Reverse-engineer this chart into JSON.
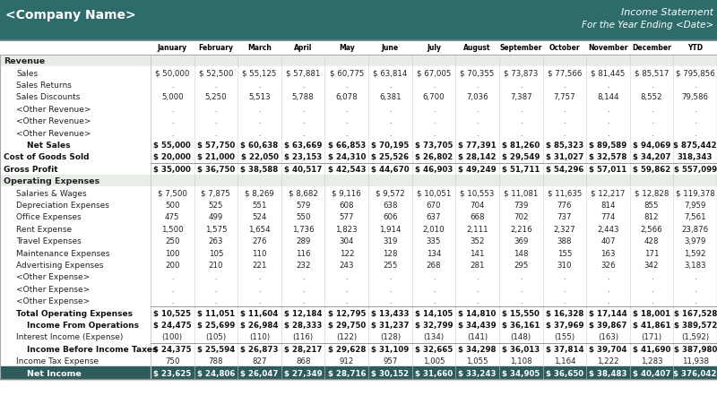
{
  "company_name": "<Company Name>",
  "report_title": "Income Statement",
  "report_subtitle": "For the Year Ending <Date>",
  "header_bg": "#2e6b6b",
  "header_text_color": "#ffffff",
  "section_bg": "#e8ede8",
  "net_income_bg": "#2e5c5c",
  "net_income_text": "#ffffff",
  "border_color": "#aaaaaa",
  "columns": [
    "January",
    "February",
    "March",
    "April",
    "May",
    "June",
    "July",
    "August",
    "September",
    "October",
    "November",
    "December",
    "YTD"
  ],
  "rows": [
    {
      "label": "Revenue",
      "type": "section",
      "indent": 0,
      "values": []
    },
    {
      "label": "Sales",
      "type": "data_dollar",
      "indent": 1,
      "values": [
        "$ 50,000",
        "$ 52,500",
        "$ 55,125",
        "$ 57,881",
        "$ 60,775",
        "$ 63,814",
        "$ 67,005",
        "$ 70,355",
        "$ 73,873",
        "$ 77,566",
        "$ 81,445",
        "$ 85,517",
        "$ 795,856"
      ]
    },
    {
      "label": "Sales Returns",
      "type": "data_dot",
      "indent": 1,
      "values": [
        ".",
        ".",
        ".",
        ".",
        ".",
        ".",
        ".",
        ".",
        ".",
        ".",
        ".",
        ".",
        "."
      ]
    },
    {
      "label": "Sales Discounts",
      "type": "data_nodollar",
      "indent": 1,
      "values": [
        "5,000",
        "5,250",
        "5,513",
        "5,788",
        "6,078",
        "6,381",
        "6,700",
        "7,036",
        "7,387",
        "7,757",
        "8,144",
        "8,552",
        "79,586"
      ]
    },
    {
      "label": "<Other Revenue>",
      "type": "data_dot",
      "indent": 1,
      "values": [
        ".",
        ".",
        ".",
        ".",
        ".",
        ".",
        ".",
        ".",
        ".",
        ".",
        ".",
        ".",
        "."
      ]
    },
    {
      "label": "<Other Revenue>",
      "type": "data_dot",
      "indent": 1,
      "values": [
        ".",
        ".",
        ".",
        ".",
        ".",
        ".",
        ".",
        ".",
        ".",
        ".",
        ".",
        ".",
        "."
      ]
    },
    {
      "label": "<Other Revenue>",
      "type": "data_dot",
      "indent": 1,
      "values": [
        ".",
        ".",
        ".",
        ".",
        ".",
        ".",
        ".",
        ".",
        ".",
        ".",
        ".",
        ".",
        "."
      ]
    },
    {
      "label": "Net Sales",
      "type": "bold_dollar",
      "indent": 2,
      "values": [
        "$ 55,000",
        "$ 57,750",
        "$ 60,638",
        "$ 63,669",
        "$ 66,853",
        "$ 70,195",
        "$ 73,705",
        "$ 77,391",
        "$ 81,260",
        "$ 85,323",
        "$ 89,589",
        "$ 94,069",
        "$ 875,442"
      ]
    },
    {
      "label": "Cost of Goods Sold",
      "type": "bold_dollar",
      "indent": 0,
      "values": [
        "$ 20,000",
        "$ 21,000",
        "$ 22,050",
        "$ 23,153",
        "$ 24,310",
        "$ 25,526",
        "$ 26,802",
        "$ 28,142",
        "$ 29,549",
        "$ 31,027",
        "$ 32,578",
        "$ 34,207",
        "318,343"
      ]
    },
    {
      "label": "Gross Profit",
      "type": "bold_dollar",
      "indent": 0,
      "border_top": true,
      "values": [
        "$ 35,000",
        "$ 36,750",
        "$ 38,588",
        "$ 40,517",
        "$ 42,543",
        "$ 44,670",
        "$ 46,903",
        "$ 49,249",
        "$ 51,711",
        "$ 54,296",
        "$ 57,011",
        "$ 59,862",
        "$ 557,099"
      ]
    },
    {
      "label": "Operating Expenses",
      "type": "section",
      "indent": 0,
      "values": []
    },
    {
      "label": "Salaries & Wages",
      "type": "data_dollar",
      "indent": 1,
      "values": [
        "$ 7,500",
        "$ 7,875",
        "$ 8,269",
        "$ 8,682",
        "$ 9,116",
        "$ 9,572",
        "$ 10,051",
        "$ 10,553",
        "$ 11,081",
        "$ 11,635",
        "$ 12,217",
        "$ 12,828",
        "$ 119,378"
      ]
    },
    {
      "label": "Depreciation Expenses",
      "type": "data_nodollar",
      "indent": 1,
      "values": [
        "500",
        "525",
        "551",
        "579",
        "608",
        "638",
        "670",
        "704",
        "739",
        "776",
        "814",
        "855",
        "7,959"
      ]
    },
    {
      "label": "Office Expenses",
      "type": "data_nodollar",
      "indent": 1,
      "values": [
        "475",
        "499",
        "524",
        "550",
        "577",
        "606",
        "637",
        "668",
        "702",
        "737",
        "774",
        "812",
        "7,561"
      ]
    },
    {
      "label": "Rent Expense",
      "type": "data_nodollar",
      "indent": 1,
      "values": [
        "1,500",
        "1,575",
        "1,654",
        "1,736",
        "1,823",
        "1,914",
        "2,010",
        "2,111",
        "2,216",
        "2,327",
        "2,443",
        "2,566",
        "23,876"
      ]
    },
    {
      "label": "Travel Expenses",
      "type": "data_nodollar",
      "indent": 1,
      "values": [
        "250",
        "263",
        "276",
        "289",
        "304",
        "319",
        "335",
        "352",
        "369",
        "388",
        "407",
        "428",
        "3,979"
      ]
    },
    {
      "label": "Maintenance Expenses",
      "type": "data_nodollar",
      "indent": 1,
      "values": [
        "100",
        "105",
        "110",
        "116",
        "122",
        "128",
        "134",
        "141",
        "148",
        "155",
        "163",
        "171",
        "1,592"
      ]
    },
    {
      "label": "Advertising Expenses",
      "type": "data_nodollar",
      "indent": 1,
      "values": [
        "200",
        "210",
        "221",
        "232",
        "243",
        "255",
        "268",
        "281",
        "295",
        "310",
        "326",
        "342",
        "3,183"
      ]
    },
    {
      "label": "<Other Expense>",
      "type": "data_dot",
      "indent": 1,
      "values": [
        ".",
        ".",
        ".",
        ".",
        ".",
        ".",
        ".",
        ".",
        ".",
        ".",
        ".",
        ".",
        "."
      ]
    },
    {
      "label": "<Other Expense>",
      "type": "data_dot",
      "indent": 1,
      "values": [
        ".",
        ".",
        ".",
        ".",
        ".",
        ".",
        ".",
        ".",
        ".",
        ".",
        ".",
        ".",
        "."
      ]
    },
    {
      "label": "<Other Expense>",
      "type": "data_dot",
      "indent": 1,
      "values": [
        ".",
        ".",
        ".",
        ".",
        ".",
        ".",
        ".",
        ".",
        ".",
        ".",
        ".",
        ".",
        "."
      ]
    },
    {
      "label": "Total Operating Expenses",
      "type": "bold_dollar",
      "indent": 1,
      "border_top": true,
      "values": [
        "$ 10,525",
        "$ 11,051",
        "$ 11,604",
        "$ 12,184",
        "$ 12,795",
        "$ 13,433",
        "$ 14,105",
        "$ 14,810",
        "$ 15,550",
        "$ 16,328",
        "$ 17,144",
        "$ 18,001",
        "$ 167,528"
      ]
    },
    {
      "label": "Income From Operations",
      "type": "bold_dollar",
      "indent": 2,
      "values": [
        "$ 24,475",
        "$ 25,699",
        "$ 26,984",
        "$ 28,333",
        "$ 29,750",
        "$ 31,237",
        "$ 32,799",
        "$ 34,439",
        "$ 36,161",
        "$ 37,969",
        "$ 39,867",
        "$ 41,861",
        "$ 389,572"
      ]
    },
    {
      "label": "Interest Income (Expense)",
      "type": "data_paren",
      "indent": 1,
      "values": [
        "(100)",
        "(105)",
        "(110)",
        "(116)",
        "(122)",
        "(128)",
        "(134)",
        "(141)",
        "(148)",
        "(155)",
        "(163)",
        "(171)",
        "(1,592)"
      ]
    },
    {
      "label": "Income Before Income Taxes",
      "type": "bold_dollar",
      "indent": 2,
      "border_top": true,
      "values": [
        "$ 24,375",
        "$ 25,594",
        "$ 26,873",
        "$ 28,217",
        "$ 29,628",
        "$ 31,109",
        "$ 32,665",
        "$ 34,298",
        "$ 36,013",
        "$ 37,814",
        "$ 39,704",
        "$ 41,690",
        "$ 387,980"
      ]
    },
    {
      "label": "Income Tax Expense",
      "type": "data_nodollar",
      "indent": 1,
      "values": [
        "750",
        "788",
        "827",
        "868",
        "912",
        "957",
        "1,005",
        "1,055",
        "1,108",
        "1,164",
        "1,222",
        "1,283",
        "11,938"
      ]
    },
    {
      "label": "Net Income",
      "type": "net_income",
      "indent": 2,
      "values": [
        "$ 23,625",
        "$ 24,806",
        "$ 26,047",
        "$ 27,349",
        "$ 28,716",
        "$ 30,152",
        "$ 31,660",
        "$ 33,243",
        "$ 34,905",
        "$ 36,650",
        "$ 38,483",
        "$ 40,407",
        "$ 376,042"
      ]
    }
  ]
}
